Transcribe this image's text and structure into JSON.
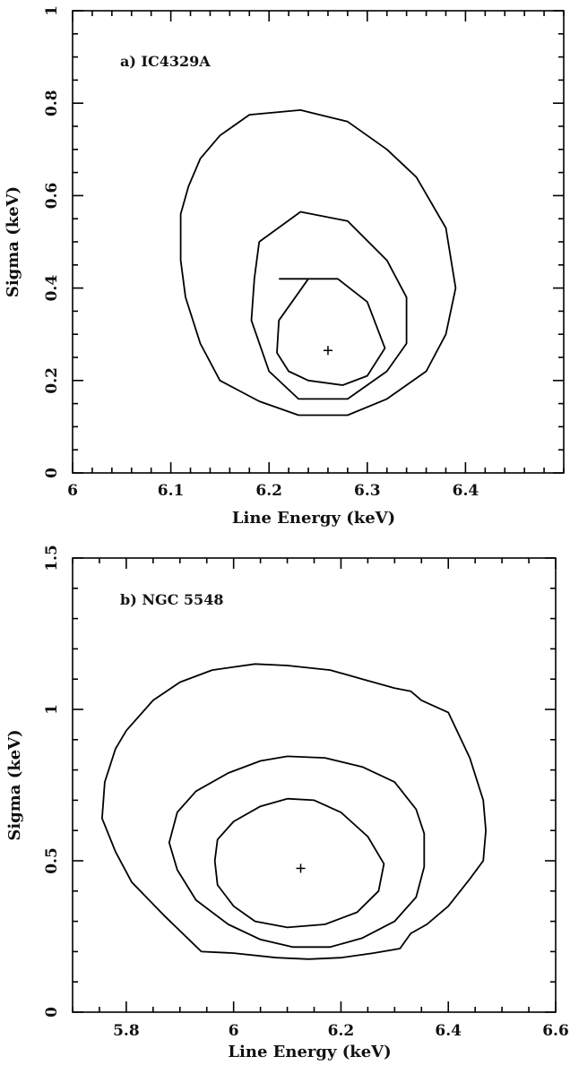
{
  "chart_data": [
    {
      "type": "contour",
      "annotation": "a) IC4329A",
      "xlabel": "Line Energy (keV)",
      "ylabel": "Sigma (keV)",
      "xlim": [
        6.0,
        6.5
      ],
      "ylim": [
        0,
        1
      ],
      "xticks": [
        "6",
        "6.1",
        "6.2",
        "6.3",
        "6.4"
      ],
      "yticks": [
        "0",
        "0.2",
        "0.4",
        "0.6",
        "0.8",
        "1"
      ],
      "best_fit": {
        "x": 6.26,
        "y": 0.265
      },
      "contours": [
        {
          "points": [
            [
              6.21,
              0.42
            ],
            [
              6.24,
              0.42
            ],
            [
              6.27,
              0.42
            ],
            [
              6.3,
              0.37
            ],
            [
              6.318,
              0.27
            ],
            [
              6.3,
              0.21
            ],
            [
              6.275,
              0.19
            ],
            [
              6.24,
              0.2
            ],
            [
              6.22,
              0.22
            ],
            [
              6.208,
              0.26
            ],
            [
              6.21,
              0.33
            ],
            [
              6.23,
              0.39
            ],
            [
              6.24,
              0.42
            ]
          ]
        },
        {
          "points": [
            [
              6.19,
              0.5
            ],
            [
              6.232,
              0.565
            ],
            [
              6.28,
              0.545
            ],
            [
              6.32,
              0.46
            ],
            [
              6.34,
              0.38
            ],
            [
              6.34,
              0.28
            ],
            [
              6.32,
              0.22
            ],
            [
              6.28,
              0.16
            ],
            [
              6.23,
              0.16
            ],
            [
              6.2,
              0.22
            ],
            [
              6.182,
              0.33
            ],
            [
              6.185,
              0.42
            ],
            [
              6.19,
              0.5
            ]
          ]
        },
        {
          "points": [
            [
              6.15,
              0.73
            ],
            [
              6.18,
              0.775
            ],
            [
              6.232,
              0.785
            ],
            [
              6.28,
              0.76
            ],
            [
              6.32,
              0.7
            ],
            [
              6.35,
              0.64
            ],
            [
              6.38,
              0.53
            ],
            [
              6.39,
              0.4
            ],
            [
              6.38,
              0.3
            ],
            [
              6.36,
              0.22
            ],
            [
              6.32,
              0.16
            ],
            [
              6.28,
              0.125
            ],
            [
              6.23,
              0.125
            ],
            [
              6.19,
              0.155
            ],
            [
              6.15,
              0.2
            ],
            [
              6.13,
              0.28
            ],
            [
              6.115,
              0.38
            ],
            [
              6.11,
              0.46
            ],
            [
              6.11,
              0.56
            ],
            [
              6.118,
              0.62
            ],
            [
              6.13,
              0.68
            ],
            [
              6.15,
              0.73
            ]
          ]
        }
      ]
    },
    {
      "type": "contour",
      "annotation": "b) NGC 5548",
      "xlabel": "Line Energy (keV)",
      "ylabel": "Sigma (keV)",
      "xlim": [
        5.7,
        6.6
      ],
      "ylim": [
        0,
        1.5
      ],
      "xticks": [
        "5.8",
        "6",
        "6.2",
        "6.4",
        "6.6"
      ],
      "yticks": [
        "0",
        "0.5",
        "1",
        "1.5"
      ],
      "best_fit": {
        "x": 6.125,
        "y": 0.475
      },
      "contours": [
        {
          "points": [
            [
              6.1,
              0.705
            ],
            [
              6.15,
              0.7
            ],
            [
              6.2,
              0.66
            ],
            [
              6.25,
              0.58
            ],
            [
              6.28,
              0.49
            ],
            [
              6.27,
              0.4
            ],
            [
              6.23,
              0.33
            ],
            [
              6.17,
              0.29
            ],
            [
              6.1,
              0.28
            ],
            [
              6.04,
              0.3
            ],
            [
              6.0,
              0.35
            ],
            [
              5.97,
              0.42
            ],
            [
              5.965,
              0.5
            ],
            [
              5.97,
              0.57
            ],
            [
              6.0,
              0.63
            ],
            [
              6.05,
              0.68
            ],
            [
              6.1,
              0.705
            ]
          ]
        },
        {
          "points": [
            [
              6.1,
              0.845
            ],
            [
              6.17,
              0.84
            ],
            [
              6.24,
              0.81
            ],
            [
              6.3,
              0.76
            ],
            [
              6.34,
              0.67
            ],
            [
              6.355,
              0.59
            ],
            [
              6.355,
              0.48
            ],
            [
              6.34,
              0.38
            ],
            [
              6.3,
              0.3
            ],
            [
              6.24,
              0.245
            ],
            [
              6.18,
              0.215
            ],
            [
              6.11,
              0.215
            ],
            [
              6.05,
              0.24
            ],
            [
              5.99,
              0.29
            ],
            [
              5.93,
              0.37
            ],
            [
              5.895,
              0.47
            ],
            [
              5.88,
              0.56
            ],
            [
              5.895,
              0.66
            ],
            [
              5.93,
              0.73
            ],
            [
              5.99,
              0.79
            ],
            [
              6.05,
              0.83
            ],
            [
              6.1,
              0.845
            ]
          ]
        },
        {
          "points": [
            [
              5.8,
              0.93
            ],
            [
              5.85,
              1.03
            ],
            [
              5.9,
              1.09
            ],
            [
              5.96,
              1.13
            ],
            [
              6.04,
              1.15
            ],
            [
              6.1,
              1.145
            ],
            [
              6.18,
              1.13
            ],
            [
              6.24,
              1.1
            ],
            [
              6.3,
              1.07
            ],
            [
              6.33,
              1.06
            ],
            [
              6.35,
              1.03
            ],
            [
              6.4,
              0.99
            ],
            [
              6.44,
              0.84
            ],
            [
              6.465,
              0.7
            ],
            [
              6.47,
              0.6
            ],
            [
              6.465,
              0.5
            ],
            [
              6.44,
              0.44
            ],
            [
              6.4,
              0.35
            ],
            [
              6.36,
              0.29
            ],
            [
              6.33,
              0.26
            ],
            [
              6.31,
              0.21
            ],
            [
              6.26,
              0.195
            ],
            [
              6.2,
              0.18
            ],
            [
              6.14,
              0.175
            ],
            [
              6.08,
              0.18
            ],
            [
              6.0,
              0.195
            ],
            [
              5.94,
              0.2
            ],
            [
              5.87,
              0.32
            ],
            [
              5.81,
              0.43
            ],
            [
              5.78,
              0.53
            ],
            [
              5.755,
              0.64
            ],
            [
              5.76,
              0.76
            ],
            [
              5.78,
              0.87
            ],
            [
              5.8,
              0.93
            ]
          ]
        }
      ]
    }
  ]
}
